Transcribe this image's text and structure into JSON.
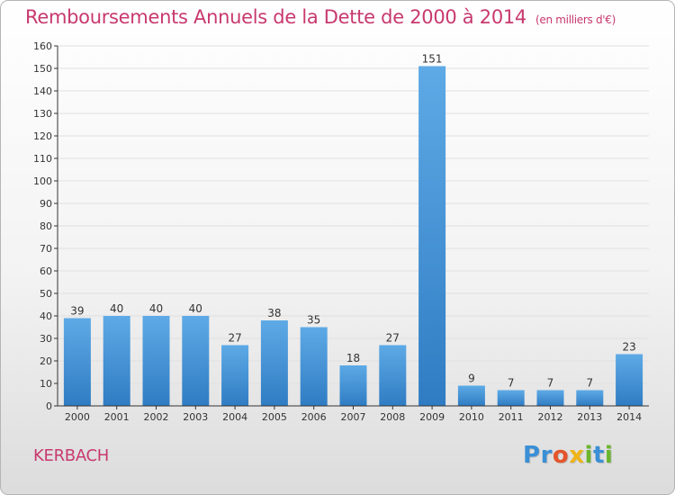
{
  "header": {
    "title": "Remboursements Annuels de la Dette de 2000 à 2014",
    "subtitle": "(en milliers d'€)"
  },
  "footer": {
    "commune": "KERBACH",
    "logo_text": "Proxiti",
    "logo_letters": [
      {
        "char": "P",
        "color": "#3a8fd6"
      },
      {
        "char": "r",
        "color": "#3a8fd6"
      },
      {
        "char": "o",
        "color": "#e4552b"
      },
      {
        "char": "x",
        "color": "#efb416"
      },
      {
        "char": "i",
        "color": "#6bb52e"
      },
      {
        "char": "t",
        "color": "#3a8fd6"
      },
      {
        "char": "i",
        "color": "#6bb52e"
      }
    ]
  },
  "colors": {
    "title": "#c8396e",
    "bar_light": "#5eaae6",
    "bar_dark": "#2f7cc3",
    "grid": "#e0e0e0",
    "axis": "#333333"
  },
  "chart_data": {
    "type": "bar",
    "title": "Remboursements Annuels de la Dette de 2000 à 2014",
    "subtitle": "(en milliers d'€)",
    "xlabel": "",
    "ylabel": "",
    "categories": [
      "2000",
      "2001",
      "2002",
      "2003",
      "2004",
      "2005",
      "2006",
      "2007",
      "2008",
      "2009",
      "2010",
      "2011",
      "2012",
      "2013",
      "2014"
    ],
    "values": [
      39,
      40,
      40,
      40,
      27,
      38,
      35,
      18,
      27,
      151,
      9,
      7,
      7,
      7,
      23
    ],
    "ylim": [
      0,
      160
    ],
    "yticks": [
      0,
      10,
      20,
      30,
      40,
      50,
      60,
      70,
      80,
      90,
      100,
      110,
      120,
      130,
      140,
      150,
      160
    ],
    "grid": true,
    "legend": "none"
  }
}
